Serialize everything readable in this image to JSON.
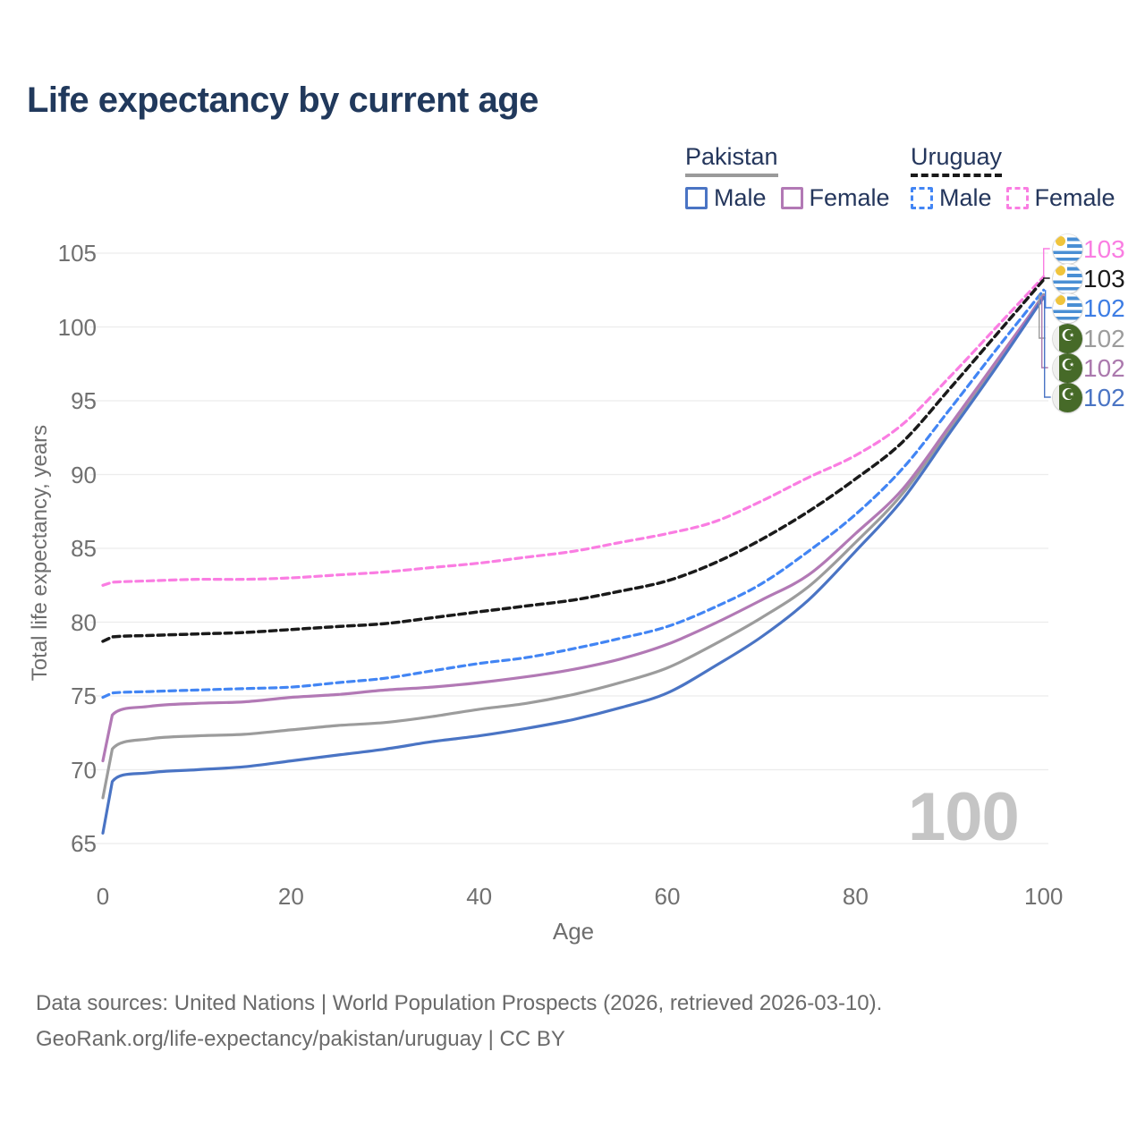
{
  "title": "Life expectancy by current age",
  "legend": {
    "groups": [
      {
        "country": "Pakistan",
        "line_style": "solid",
        "underline_color": "#9a9a9a",
        "items": [
          {
            "label": "Male",
            "color": "#4a74c4",
            "style": "solid"
          },
          {
            "label": "Female",
            "color": "#b279b5",
            "style": "solid"
          }
        ]
      },
      {
        "country": "Uruguay",
        "line_style": "dashed",
        "underline_color": "#1a1a1a",
        "items": [
          {
            "label": "Male",
            "color": "#4285f4",
            "style": "dashed"
          },
          {
            "label": "Female",
            "color": "#fa7de2",
            "style": "dashed"
          }
        ]
      }
    ]
  },
  "y_axis": {
    "label": "Total life expectancy, years",
    "ticks": [
      65,
      70,
      75,
      80,
      85,
      90,
      95,
      100,
      105
    ]
  },
  "x_axis": {
    "label": "Age",
    "ticks": [
      0,
      20,
      40,
      60,
      80,
      100
    ]
  },
  "watermark_age": "100",
  "end_labels": [
    {
      "value": "103",
      "color": "#fa7de2",
      "flag": "uruguay"
    },
    {
      "value": "103",
      "color": "#1a1a1a",
      "flag": "uruguay"
    },
    {
      "value": "102",
      "color": "#3d7de4",
      "flag": "uruguay"
    },
    {
      "value": "102",
      "color": "#9c9c9c",
      "flag": "pakistan"
    },
    {
      "value": "102",
      "color": "#ab79ad",
      "flag": "pakistan"
    },
    {
      "value": "102",
      "color": "#4a74c4",
      "flag": "pakistan"
    }
  ],
  "footer": {
    "line1": "Data sources: United Nations | World Population Prospects (2026, retrieved 2026-03-10).",
    "line2": "GeoRank.org/life-expectancy/pakistan/uruguay | CC BY"
  },
  "chart_data": {
    "type": "line",
    "title": "Life expectancy by current age",
    "xlabel": "Age",
    "ylabel": "Total life expectancy, years",
    "xlim": [
      0,
      100
    ],
    "ylim": [
      65,
      105
    ],
    "x_ticks": [
      0,
      20,
      40,
      60,
      80,
      100
    ],
    "y_ticks": [
      65,
      70,
      75,
      80,
      85,
      90,
      95,
      100,
      105
    ],
    "grid": true,
    "legend_position": "top-right",
    "ages": [
      0,
      1,
      5,
      10,
      15,
      20,
      25,
      30,
      35,
      40,
      45,
      50,
      55,
      60,
      65,
      70,
      75,
      80,
      85,
      90,
      95,
      100
    ],
    "series": [
      {
        "name": "Uruguay Female",
        "country": "Uruguay",
        "sex": "Female",
        "style": "dashed",
        "color": "#fa7de2",
        "end_label": "103",
        "values": [
          82.5,
          82.7,
          82.8,
          82.9,
          82.9,
          83.0,
          83.2,
          83.4,
          83.7,
          84.0,
          84.4,
          84.8,
          85.4,
          86.0,
          86.8,
          88.2,
          89.8,
          91.3,
          93.4,
          96.6,
          100.0,
          103.4
        ]
      },
      {
        "name": "Uruguay",
        "country": "Uruguay",
        "sex": "Both",
        "style": "dashed",
        "color": "#1a1a1a",
        "end_label": "103",
        "values": [
          78.7,
          79.0,
          79.1,
          79.2,
          79.3,
          79.5,
          79.7,
          79.9,
          80.3,
          80.7,
          81.1,
          81.5,
          82.1,
          82.8,
          84.0,
          85.6,
          87.5,
          89.7,
          92.2,
          95.8,
          99.5,
          103.2
        ]
      },
      {
        "name": "Uruguay Male",
        "country": "Uruguay",
        "sex": "Male",
        "style": "dashed",
        "color": "#4285f4",
        "end_label": "102",
        "values": [
          74.9,
          75.2,
          75.3,
          75.4,
          75.5,
          75.6,
          75.9,
          76.2,
          76.7,
          77.2,
          77.6,
          78.2,
          78.9,
          79.7,
          81.0,
          82.6,
          84.8,
          87.3,
          90.4,
          94.4,
          98.5,
          102.5
        ]
      },
      {
        "name": "Pakistan",
        "country": "Pakistan",
        "sex": "Both",
        "style": "solid",
        "color": "#9c9c9c",
        "end_label": "102",
        "values": [
          68.1,
          71.4,
          72.1,
          72.3,
          72.4,
          72.7,
          73.0,
          73.2,
          73.6,
          74.1,
          74.5,
          75.1,
          75.9,
          76.9,
          78.5,
          80.3,
          82.4,
          85.4,
          88.7,
          93.1,
          97.5,
          102.2
        ]
      },
      {
        "name": "Pakistan Female",
        "country": "Pakistan",
        "sex": "Female",
        "style": "solid",
        "color": "#b279b5",
        "end_label": "102",
        "values": [
          70.6,
          73.7,
          74.3,
          74.5,
          74.6,
          74.9,
          75.1,
          75.4,
          75.6,
          75.9,
          76.3,
          76.8,
          77.5,
          78.5,
          79.9,
          81.5,
          83.2,
          86.0,
          89.0,
          93.3,
          97.7,
          102.1
        ]
      },
      {
        "name": "Pakistan Male",
        "country": "Pakistan",
        "sex": "Male",
        "style": "solid",
        "color": "#4a74c4",
        "end_label": "102",
        "values": [
          65.7,
          69.2,
          69.8,
          70.0,
          70.2,
          70.6,
          71.0,
          71.4,
          71.9,
          72.3,
          72.8,
          73.4,
          74.2,
          75.2,
          77.0,
          79.0,
          81.5,
          84.8,
          88.3,
          92.8,
          97.3,
          102.0
        ]
      }
    ]
  }
}
